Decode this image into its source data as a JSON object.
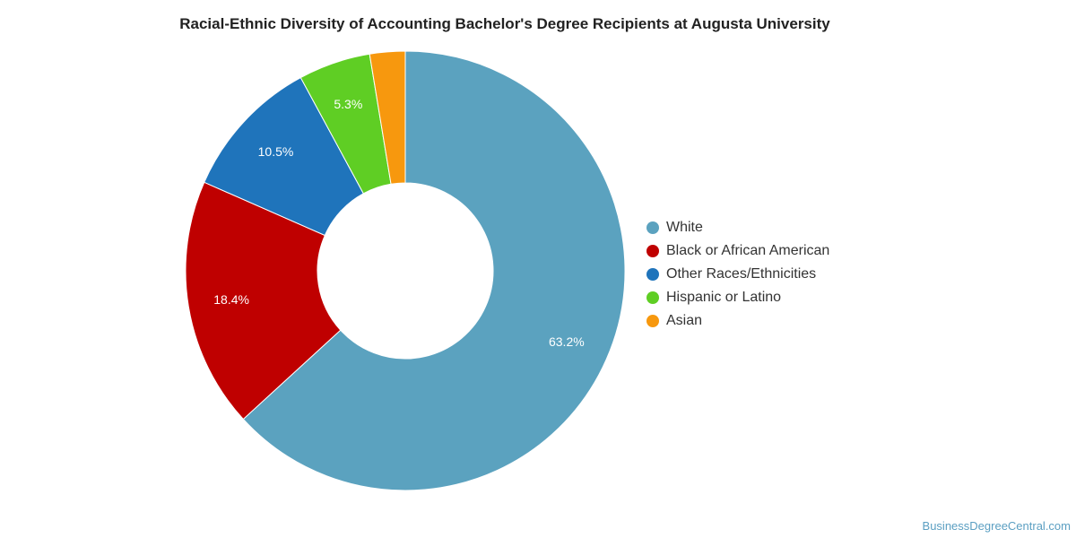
{
  "chart_data": {
    "type": "pie",
    "variant": "donut",
    "title": "Racial-Ethnic Diversity of Accounting Bachelor's Degree Recipients at Augusta University",
    "categories": [
      "White",
      "Black or African American",
      "Other Races/Ethnicities",
      "Hispanic or Latino",
      "Asian"
    ],
    "values": [
      63.2,
      18.4,
      10.5,
      5.3,
      2.6
    ],
    "labels": [
      "63.2%",
      "18.4%",
      "10.5%",
      "5.3%",
      ""
    ],
    "colors": [
      "#5ba2bf",
      "#bf0000",
      "#1f74bb",
      "#5fce24",
      "#f7980e"
    ],
    "legend_position": "right"
  },
  "watermark": "BusinessDegreeCentral.com"
}
